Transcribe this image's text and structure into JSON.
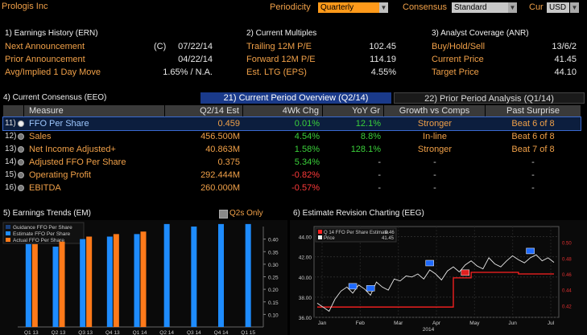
{
  "title": "Prologis Inc",
  "controls": {
    "periodicity_label": "Periodicity",
    "periodicity_value": "Quarterly",
    "consensus_label": "Consensus",
    "consensus_value": "Standard",
    "cur_label": "Cur",
    "cur_value": "USD"
  },
  "panels": {
    "earnings_history": {
      "title": "1) Earnings History (ERN)",
      "rows": [
        {
          "label": "Next Announcement",
          "flag": "(C)",
          "value": "07/22/14"
        },
        {
          "label": "Prior Announcement",
          "flag": "",
          "value": "04/22/14"
        },
        {
          "label": "Avg/Implied 1 Day Move",
          "flag": "",
          "value": "1.65% / N.A."
        }
      ]
    },
    "current_multiples": {
      "title": "2) Current Multiples",
      "rows": [
        {
          "label": "Trailing 12M P/E",
          "value": "102.45"
        },
        {
          "label": "Forward 12M P/E",
          "value": "114.19"
        },
        {
          "label": "Est. LTG (EPS)",
          "value": "4.55%"
        }
      ]
    },
    "analyst_coverage": {
      "title": "3) Analyst Coverage (ANR)",
      "rows": [
        {
          "label": "Buy/Hold/Sell",
          "value": "13/6/2"
        },
        {
          "label": "Current Price",
          "value": "41.45"
        },
        {
          "label": "Target Price",
          "value": "44.10"
        }
      ]
    }
  },
  "consensus": {
    "title": "4) Current Consensus (EEO)",
    "tab_active": "21) Current Period Overview (Q2/14)",
    "tab_other": "22) Prior Period Analysis (Q1/14)",
    "headers": [
      "Measure",
      "Q2/14 Est",
      "4Wk Chg",
      "YoY Gr",
      "Growth vs Comps",
      "Past Surprise"
    ],
    "rows": [
      {
        "num": "11)",
        "measure": "FFO Per Share",
        "est": "0.459",
        "chg": "0.01%",
        "yoy": "12.1%",
        "growth": "Stronger",
        "surprise": "Beat 6 of 8"
      },
      {
        "num": "12)",
        "measure": "Sales",
        "est": "456.500M",
        "chg": "4.54%",
        "yoy": "8.8%",
        "growth": "In-line",
        "surprise": "Beat 6 of 8"
      },
      {
        "num": "13)",
        "measure": "Net Income Adjusted+",
        "est": "40.863M",
        "chg": "1.58%",
        "yoy": "128.1%",
        "growth": "Stronger",
        "surprise": "Beat 7 of 8"
      },
      {
        "num": "14)",
        "measure": "Adjusted FFO Per Share",
        "est": "0.375",
        "chg": "5.34%",
        "yoy": "-",
        "growth": "-",
        "surprise": "-"
      },
      {
        "num": "15)",
        "measure": "Operating Profit",
        "est": "292.444M",
        "chg": "-0.82%",
        "yoy": "-",
        "growth": "-",
        "surprise": "-"
      },
      {
        "num": "16)",
        "measure": "EBITDA",
        "est": "260.000M",
        "chg": "-0.57%",
        "yoy": "-",
        "growth": "-",
        "surprise": "-"
      }
    ]
  },
  "trends": {
    "title": "5) Earnings Trends (EM)",
    "toggle_label": "Q2s Only"
  },
  "revision": {
    "title": "6) Estimate Revision Charting (EEG)"
  },
  "chart_data": [
    {
      "type": "bar",
      "legend": [
        "Guidance FFO Per Share",
        "Estimate FFO Per Share",
        "Actual FFO Per Share"
      ],
      "categories": [
        "Q1 13",
        "Q2 13",
        "Q3 13",
        "Q4 13",
        "Q1 14",
        "Q2 14",
        "Q3 14",
        "Q4 14",
        "Q1 15"
      ],
      "series": [
        {
          "name": "Estimate FFO Per Share",
          "values": [
            0.38,
            0.37,
            0.4,
            0.41,
            0.42,
            0.46,
            0.45,
            0.46,
            0.46
          ]
        },
        {
          "name": "Actual FFO Per Share",
          "values": [
            0.38,
            0.39,
            0.41,
            0.42,
            0.43,
            null,
            null,
            null,
            null
          ]
        }
      ],
      "ylim": [
        0.05,
        0.45
      ],
      "yticks": [
        "0.10",
        "0.15",
        "0.20",
        "0.25",
        "0.30",
        "0.35",
        "0.40"
      ],
      "colors": {
        "estimate": "#1e8cff",
        "actual": "#ff7a1a"
      }
    },
    {
      "type": "line",
      "legend_items": [
        {
          "name": "Q 14 FFO Per Share Estimate",
          "value": "0.46"
        },
        {
          "name": "Price",
          "value": "41.45"
        }
      ],
      "x_labels": [
        "Jan",
        "Feb",
        "Mar",
        "Apr",
        "May",
        "Jun",
        "Jul"
      ],
      "x_year": "2014",
      "left_ticks": [
        "36.00",
        "38.00",
        "40.00",
        "42.00",
        "44.00"
      ],
      "left_lim": [
        36,
        45
      ],
      "right_ticks": [
        "0.42",
        "0.44",
        "0.46",
        "0.48",
        "0.50"
      ],
      "right_lim": [
        0.405,
        0.52
      ],
      "price": [
        37.4,
        37.0,
        36.6,
        37.8,
        38.6,
        39.0,
        38.4,
        39.2,
        38.8,
        38.2,
        39.5,
        39.0,
        38.7,
        39.8,
        39.6,
        40.1,
        40.0,
        40.3,
        39.8,
        40.7,
        40.3,
        39.7,
        40.6,
        41.0,
        40.5,
        41.2,
        41.6,
        41.1,
        40.8,
        41.9,
        41.3,
        41.0,
        41.6,
        42.1,
        41.7,
        41.4,
        41.9,
        42.2,
        41.6,
        41.9,
        41.45
      ],
      "estimate": [
        0.418,
        0.418,
        0.418,
        0.418,
        0.418,
        0.418,
        0.418,
        0.418,
        0.418,
        0.418,
        0.418,
        0.418,
        0.418,
        0.418,
        0.418,
        0.418,
        0.418,
        0.418,
        0.418,
        0.418,
        0.418,
        0.418,
        0.418,
        0.455,
        0.455,
        0.455,
        0.462,
        0.462,
        0.462,
        0.462,
        0.462,
        0.462,
        0.462,
        0.462,
        0.46,
        0.46,
        0.46,
        0.46,
        0.46,
        0.46,
        0.46
      ],
      "colors": {
        "price": "#e8e8e8",
        "estimate": "#ff2020"
      }
    }
  ]
}
